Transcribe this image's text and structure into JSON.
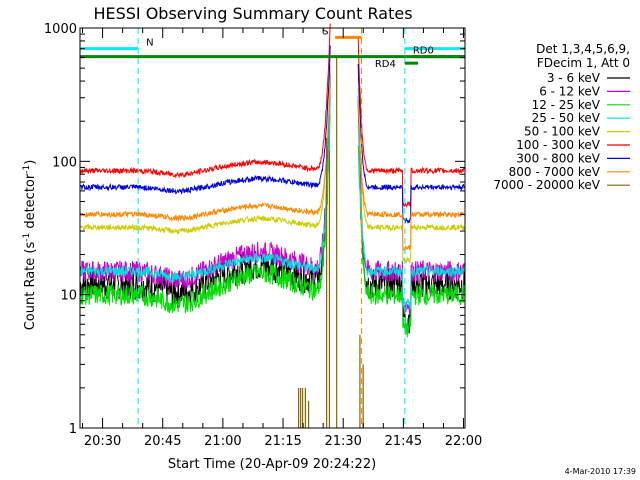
{
  "chart_data": {
    "type": "line",
    "title": "HESSI Observing Summary Count Rates",
    "xlabel": "Start Time (20-Apr-09 20:24:22)",
    "ylabel_main": "Count Rate (s",
    "ylabel_sup1": "-1",
    "ylabel_mid": " detector",
    "ylabel_sup2": "-1",
    "ylabel_end": ")",
    "ylog": true,
    "ylim": [
      1,
      1000
    ],
    "xlim_minutes": [
      0,
      96
    ],
    "x_ticks": [
      {
        "label": "20:30",
        "minutes": 5.63
      },
      {
        "label": "20:45",
        "minutes": 20.63
      },
      {
        "label": "21:00",
        "minutes": 35.63
      },
      {
        "label": "21:15",
        "minutes": 50.63
      },
      {
        "label": "21:30",
        "minutes": 65.63
      },
      {
        "label": "21:45",
        "minutes": 80.63
      },
      {
        "label": "22:00",
        "minutes": 95.63
      }
    ],
    "y_ticks": [
      {
        "label": "1",
        "value": 1
      },
      {
        "label": "10",
        "value": 10
      },
      {
        "label": "100",
        "value": 100
      },
      {
        "label": "1000",
        "value": 1000
      }
    ],
    "legend_header": [
      "Det 1,3,4,5,6,9,",
      "FDecim 1, Att 0"
    ],
    "series": [
      {
        "name": "3 - 6 keV",
        "color": "#000000",
        "base": 12,
        "amp": 0.18,
        "noise": 0.12
      },
      {
        "name": "6 - 12 keV",
        "color": "#cc00cc",
        "base": 15,
        "amp": 0.18,
        "noise": 0.08
      },
      {
        "name": "12 - 25 keV",
        "color": "#00dd00",
        "base": 10,
        "amp": 0.2,
        "noise": 0.08
      },
      {
        "name": "25 - 50 keV",
        "color": "#00dddd",
        "base": 15,
        "amp": 0.12,
        "noise": 0.04
      },
      {
        "name": "50 - 100 keV",
        "color": "#cccc00",
        "base": 32,
        "amp": 0.08,
        "noise": 0.02
      },
      {
        "name": "100 - 300 keV",
        "color": "#ff0000",
        "base": 85,
        "amp": 0.08,
        "noise": 0.02
      },
      {
        "name": "300 - 800 keV",
        "color": "#0000dd",
        "base": 64,
        "amp": 0.08,
        "noise": 0.02
      },
      {
        "name": "800 - 7000 keV",
        "color": "#ff8800",
        "base": 40,
        "amp": 0.08,
        "noise": 0.02
      },
      {
        "name": "7000 - 20000 keV",
        "color": "#886600",
        "base": 1,
        "amp": 0,
        "noise": 0
      }
    ],
    "data_gap_minutes": [
      62.5,
      69.3
    ],
    "flags": [
      {
        "label": "N",
        "color": "#00eeee",
        "level": 700,
        "start": 0,
        "end": 14.5
      },
      {
        "label": "",
        "color": "#00eeee",
        "level": 700,
        "start": 81.0,
        "end": 96.0
      },
      {
        "label": "S",
        "color": "#ff8800",
        "level": 850,
        "start": 63.6,
        "end": 70.2
      },
      {
        "label": "",
        "color": "#008800",
        "level": 610,
        "start": 0,
        "end": 96.0
      },
      {
        "label": "RD0",
        "color": "#008800",
        "level": 610,
        "start": 82.5,
        "end": 96.0
      },
      {
        "label": "RD4",
        "color": "#008800",
        "level": 545,
        "start": 81.0,
        "end": 84.3
      }
    ],
    "vlines": [
      {
        "minutes": 14.5,
        "color": "#00eeee"
      },
      {
        "minutes": 70.2,
        "color": "#ff8800"
      },
      {
        "minutes": 81.0,
        "color": "#00eeee"
      },
      {
        "minutes": 96.0,
        "color": "#00eeee"
      }
    ],
    "footer_date": "4-Mar-2010 17:39"
  }
}
